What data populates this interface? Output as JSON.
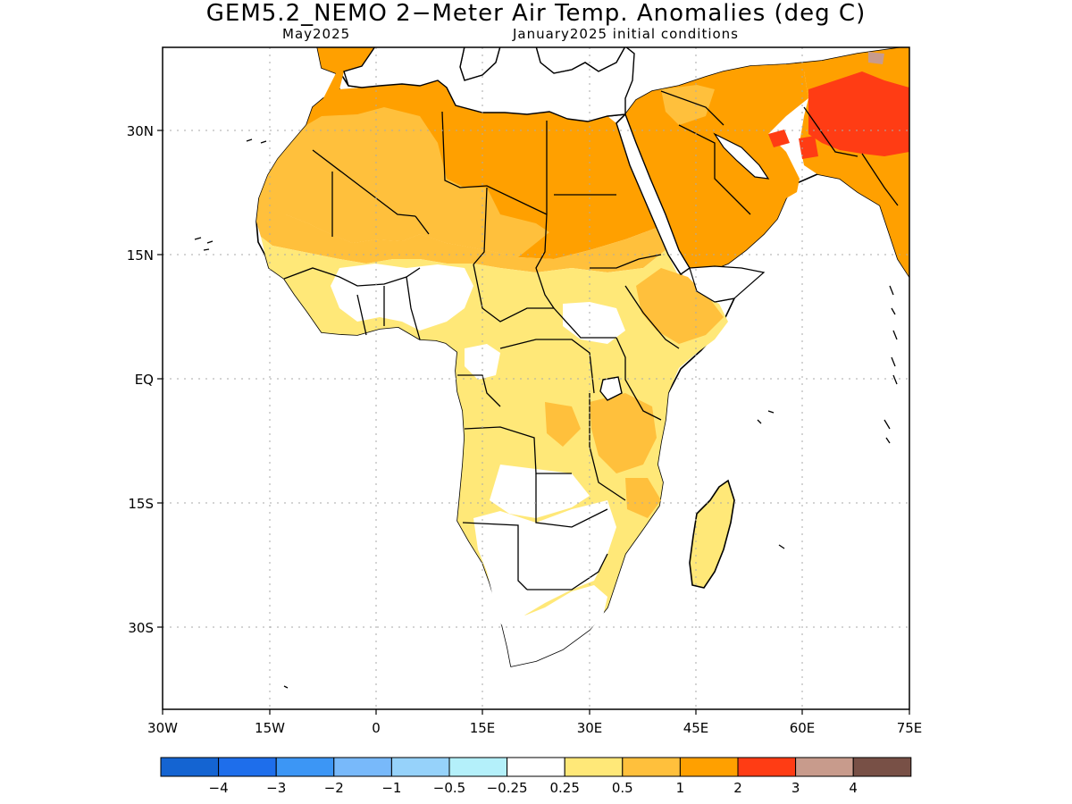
{
  "title": "GEM5.2_NEMO 2−Meter Air Temp. Anomalies (deg C)",
  "subtitle_left": "May2025",
  "subtitle_right": "January2025 initial conditions",
  "axes": {
    "lat_ticks": [
      "30N",
      "15N",
      "EQ",
      "15S",
      "30S"
    ],
    "lon_ticks": [
      "30W",
      "15W",
      "0",
      "15E",
      "30E",
      "45E",
      "60E",
      "75E"
    ]
  },
  "legend": {
    "colors": [
      "#1464d2",
      "#1e6eeb",
      "#3c96f5",
      "#78b9fa",
      "#96d2fa",
      "#b4f0fa",
      "#ffffff",
      "#ffe878",
      "#ffc03c",
      "#ffa000",
      "#ff3c14",
      "#c89b8c",
      "#785046"
    ],
    "labels": [
      "−4",
      "−3",
      "−2",
      "−1",
      "−0.5",
      "−0.25",
      "0.25",
      "0.5",
      "1",
      "2",
      "3",
      "4"
    ]
  },
  "anomaly_regions": [
    {
      "label": "North Africa / Sahara",
      "value_range": "1 to 2"
    },
    {
      "label": "Arabian Peninsula",
      "value_range": "1 to 2"
    },
    {
      "label": "Iran / Afghanistan / Pakistan",
      "value_range": "2 to 3"
    },
    {
      "label": "Sahel and West Africa coast",
      "value_range": "0.5 to 1"
    },
    {
      "label": "Central and East Africa",
      "value_range": "0.25 to 1"
    },
    {
      "label": "Southern Africa interior",
      "value_range": "-0.25 to 0.25"
    },
    {
      "label": "Madagascar",
      "value_range": "0.25 to 1"
    }
  ]
}
